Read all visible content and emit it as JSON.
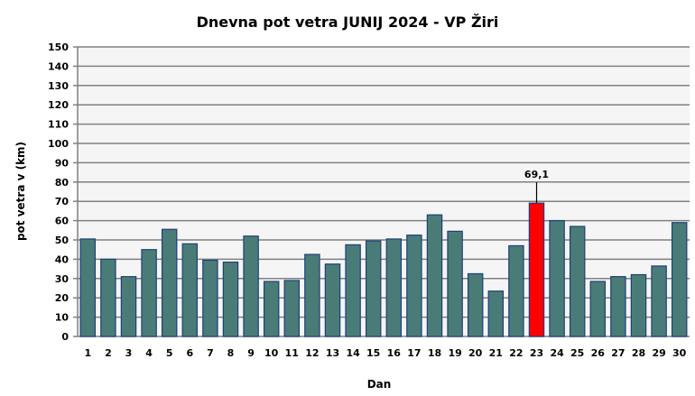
{
  "chart_data": {
    "type": "bar",
    "title": "Dnevna pot vetra JUNIJ 2024 - VP Žiri",
    "xlabel": "Dan",
    "ylabel": "pot vetra  v (km)",
    "ylim": [
      0,
      150
    ],
    "ytick_step": 10,
    "grid": true,
    "categories": [
      "1",
      "2",
      "3",
      "4",
      "5",
      "6",
      "7",
      "8",
      "9",
      "10",
      "11",
      "12",
      "13",
      "14",
      "15",
      "16",
      "17",
      "18",
      "19",
      "20",
      "21",
      "22",
      "23",
      "24",
      "25",
      "26",
      "27",
      "28",
      "29",
      "30"
    ],
    "values": [
      50.5,
      40,
      31,
      45,
      55.5,
      48,
      39.5,
      38.5,
      52,
      28.5,
      29,
      42.5,
      37.5,
      47.5,
      49.5,
      50.5,
      52.5,
      63,
      54.5,
      32.5,
      23.5,
      47,
      69.1,
      60,
      57,
      28.5,
      31,
      32,
      36.5,
      59
    ],
    "highlight": {
      "index": 22,
      "label": "69,1",
      "color": "#ff0000"
    },
    "bar_color": "#4a7c77",
    "bar_edge_color": "#1f3f7a",
    "plot_background": "#f5f5f5"
  }
}
